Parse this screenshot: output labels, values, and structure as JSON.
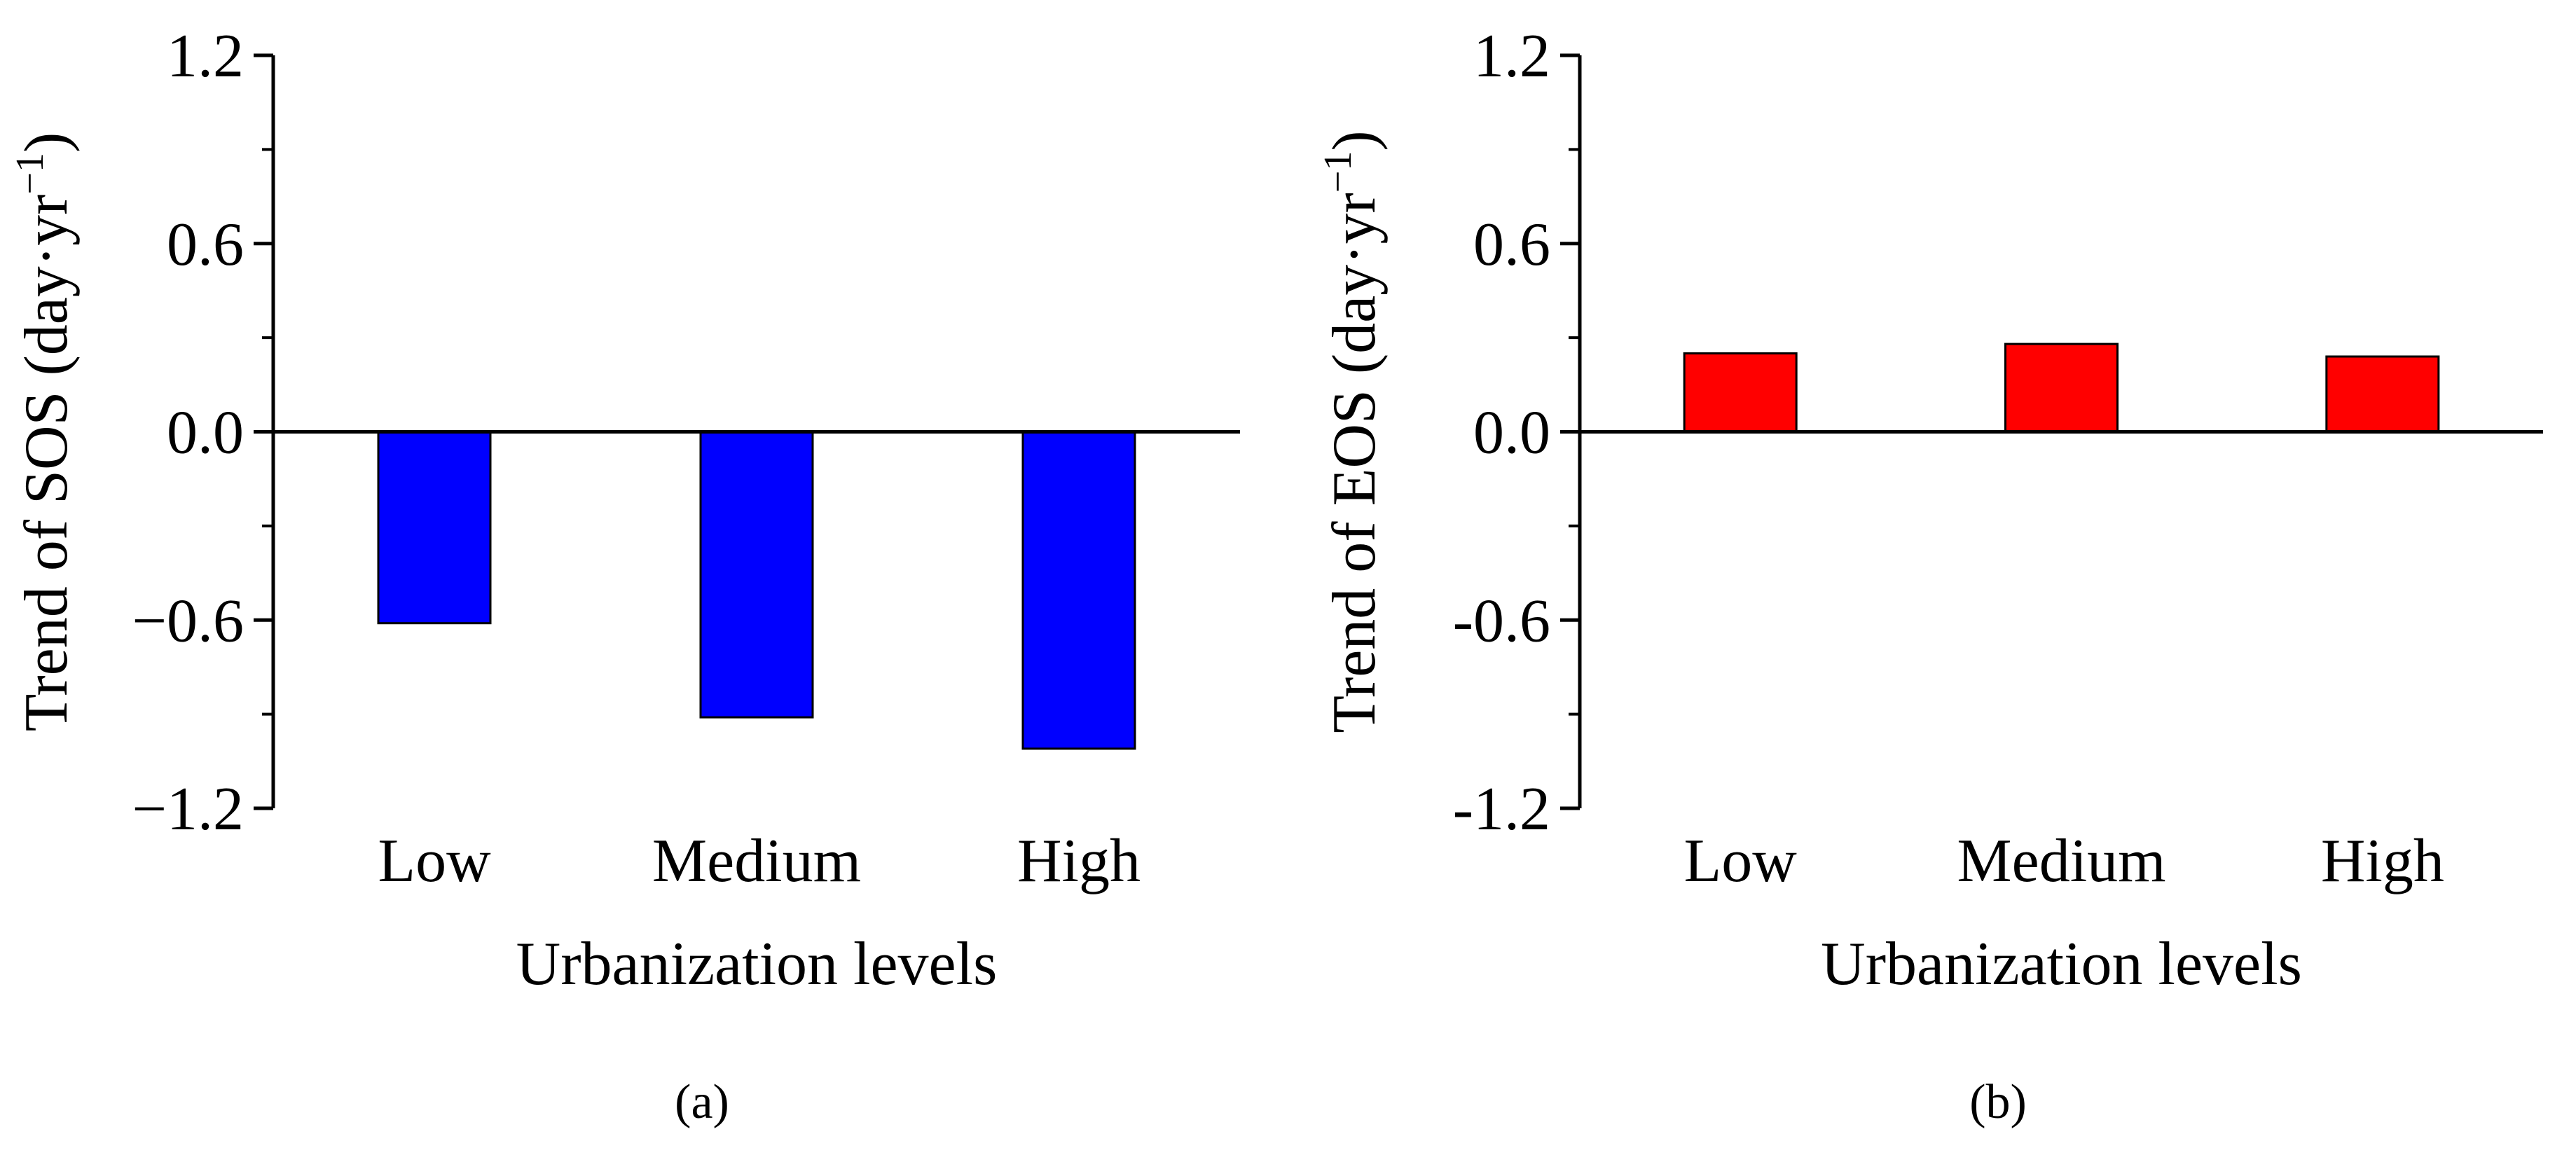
{
  "chart_data": [
    {
      "type": "bar",
      "panel": "(a)",
      "categories": [
        "Low",
        "Medium",
        "High"
      ],
      "values": [
        -0.61,
        -0.91,
        -1.01
      ],
      "color": "#0000ff",
      "ylabel_main": "Trend of SOS (day·yr",
      "ylabel_sup": "−1",
      "ylabel_close": ")",
      "xlabel": "Urbanization levels",
      "ylim": [
        -1.2,
        1.2
      ],
      "yticks": [
        1.2,
        0.6,
        0.0,
        -0.6,
        -1.2
      ],
      "ytick_labels": [
        "1.2",
        "0.6",
        "0.0",
        "−0.6",
        "−1.2"
      ]
    },
    {
      "type": "bar",
      "panel": "(b)",
      "categories": [
        "Low",
        "Medium",
        "High"
      ],
      "values": [
        0.25,
        0.28,
        0.24
      ],
      "color": "#ff0000",
      "ylabel_main": "Trend of EOS (day·yr",
      "ylabel_sup": "−1",
      "ylabel_close": ")",
      "xlabel": "Urbanization levels",
      "ylim": [
        -1.2,
        1.2
      ],
      "yticks": [
        1.2,
        0.6,
        0.0,
        -0.6,
        -1.2
      ],
      "ytick_labels": [
        "1.2",
        "0.6",
        "0.0",
        "-0.6",
        "-1.2"
      ]
    }
  ]
}
